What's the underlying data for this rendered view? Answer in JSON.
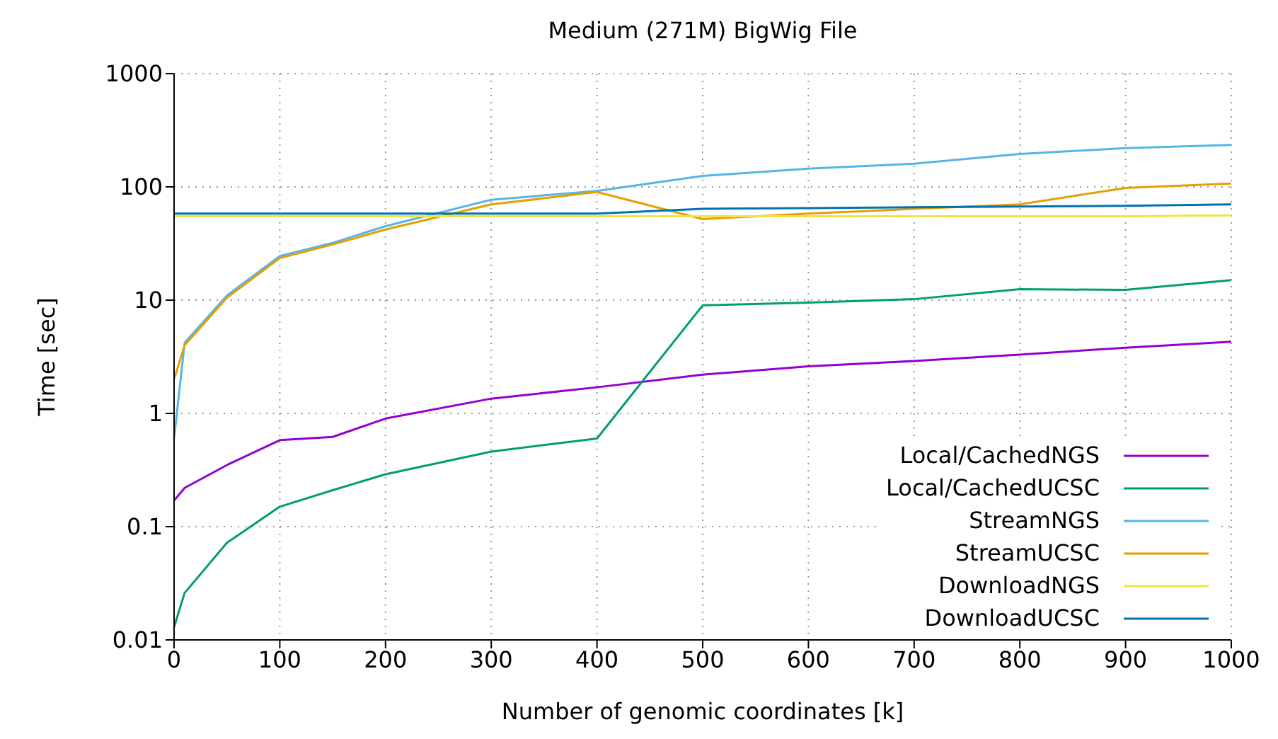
{
  "chart_data": {
    "type": "line",
    "title": "Medium (271M) BigWig File",
    "xlabel": "Number of genomic coordinates [k]",
    "ylabel": "Time [sec]",
    "x": [
      0,
      10,
      50,
      100,
      150,
      200,
      300,
      400,
      500,
      600,
      700,
      800,
      900,
      1000
    ],
    "series": [
      {
        "name": "Local/CachedNGS",
        "color": "#9400d3",
        "values": [
          0.17,
          0.22,
          0.35,
          0.58,
          0.62,
          0.9,
          1.35,
          1.7,
          2.2,
          2.6,
          2.9,
          3.3,
          3.8,
          4.3
        ]
      },
      {
        "name": "Local/CachedUCSC",
        "color": "#009e73",
        "values": [
          0.013,
          0.026,
          0.072,
          0.15,
          0.21,
          0.29,
          0.46,
          0.6,
          9,
          9.5,
          10.2,
          12.5,
          12.3,
          15
        ]
      },
      {
        "name": "StreamNGS",
        "color": "#56b4e9",
        "values": [
          0.6,
          4.2,
          11,
          24.5,
          32,
          45,
          77,
          92,
          125,
          145,
          160,
          195,
          220,
          235
        ]
      },
      {
        "name": "StreamUCSC",
        "color": "#e69f00",
        "values": [
          2,
          4,
          10.5,
          23.5,
          31,
          42,
          70,
          90,
          52,
          58,
          64,
          70,
          98,
          107
        ]
      },
      {
        "name": "DownloadNGS",
        "color": "#f0e442",
        "values": [
          55,
          55,
          55,
          55,
          55,
          55,
          55,
          55,
          55,
          55,
          55,
          55,
          55,
          56
        ]
      },
      {
        "name": "DownloadUCSC",
        "color": "#0072b2",
        "values": [
          58,
          58,
          58,
          58,
          58,
          58,
          58,
          58,
          64,
          65,
          66,
          67,
          68,
          70
        ]
      }
    ],
    "xlim": [
      0,
      1000
    ],
    "xticks": [
      0,
      100,
      200,
      300,
      400,
      500,
      600,
      700,
      800,
      900,
      1000
    ],
    "ylim": [
      0.01,
      1000
    ],
    "yticks": [
      0.01,
      0.1,
      1,
      10,
      100,
      1000
    ],
    "log": "y",
    "grid": true,
    "legend": "bottom right",
    "marker": "none",
    "line_style": "solid"
  }
}
